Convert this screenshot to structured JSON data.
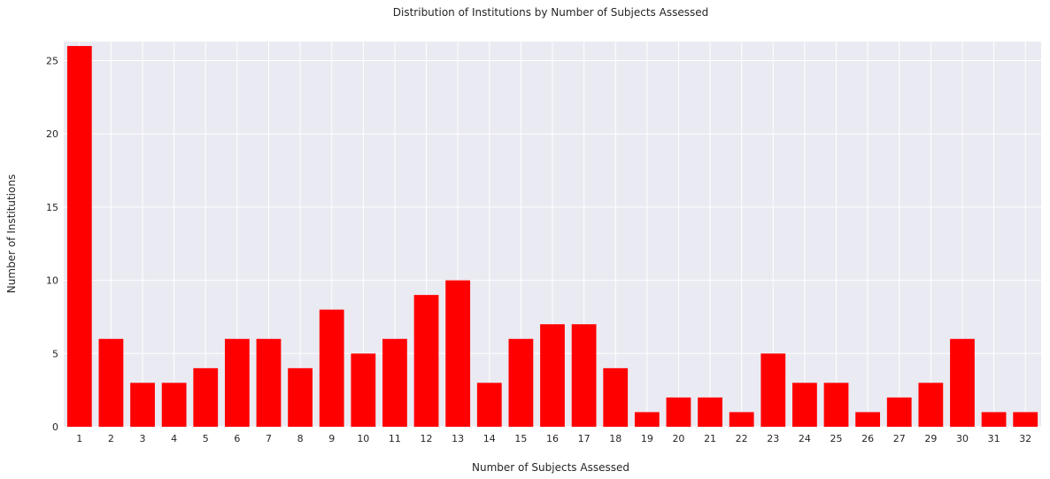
{
  "chart_data": {
    "type": "bar",
    "title": "Distribution of Institutions by Number of Subjects Assessed",
    "xlabel": "Number of Subjects Assessed",
    "ylabel": "Number of Institutions",
    "categories": [
      "1",
      "2",
      "3",
      "4",
      "5",
      "6",
      "7",
      "8",
      "9",
      "10",
      "11",
      "12",
      "13",
      "14",
      "15",
      "16",
      "17",
      "18",
      "19",
      "20",
      "21",
      "22",
      "23",
      "24",
      "25",
      "26",
      "27",
      "29",
      "30",
      "31",
      "32"
    ],
    "values": [
      26,
      6,
      3,
      3,
      4,
      6,
      6,
      4,
      8,
      5,
      6,
      9,
      10,
      3,
      6,
      7,
      7,
      4,
      1,
      2,
      2,
      1,
      5,
      3,
      3,
      1,
      2,
      3,
      6,
      1,
      1
    ],
    "ylim": [
      0,
      26.3
    ],
    "yticks": [
      0,
      5,
      10,
      15,
      20,
      25
    ],
    "grid": true,
    "bar_color": "#ff0000",
    "background_color": "#eaeaf2",
    "grid_color": "#ffffff"
  }
}
